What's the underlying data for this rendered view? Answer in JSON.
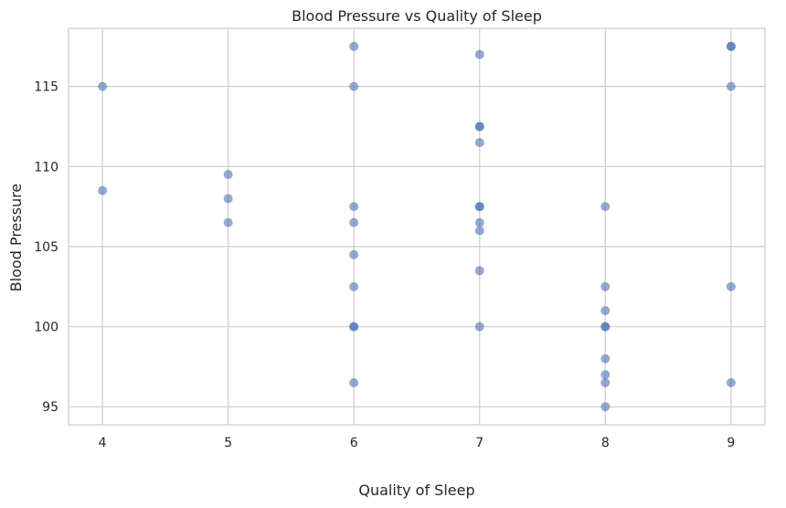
{
  "chart_data": {
    "type": "scatter",
    "title": "Blood Pressure vs Quality of Sleep",
    "xlabel": "Quality of Sleep",
    "ylabel": "Blood Pressure",
    "xlim": [
      3.73,
      9.27
    ],
    "ylim": [
      93.87,
      118.63
    ],
    "xticks": [
      4,
      5,
      6,
      7,
      8,
      9
    ],
    "yticks": [
      95,
      100,
      105,
      110,
      115
    ],
    "grid": true,
    "marker_color": "#4c72b0",
    "x": [
      4,
      4,
      5,
      5,
      5,
      6,
      6,
      6,
      6,
      6,
      6,
      6,
      6,
      6,
      7,
      7,
      7,
      7,
      7,
      7,
      7,
      7,
      7,
      7,
      8,
      8,
      8,
      8,
      8,
      8,
      8,
      8,
      8,
      9,
      9,
      9,
      9,
      9
    ],
    "y": [
      115,
      108.5,
      109.5,
      108,
      106.5,
      117.5,
      115,
      107.5,
      106.5,
      104.5,
      102.5,
      100,
      96.5,
      100,
      117,
      112.5,
      111.5,
      107.5,
      106.5,
      106,
      103.5,
      100,
      112.5,
      107.5,
      107.5,
      102.5,
      101,
      100,
      98,
      97,
      96.5,
      95,
      100,
      117.5,
      115,
      102.5,
      96.5,
      117.5
    ]
  }
}
